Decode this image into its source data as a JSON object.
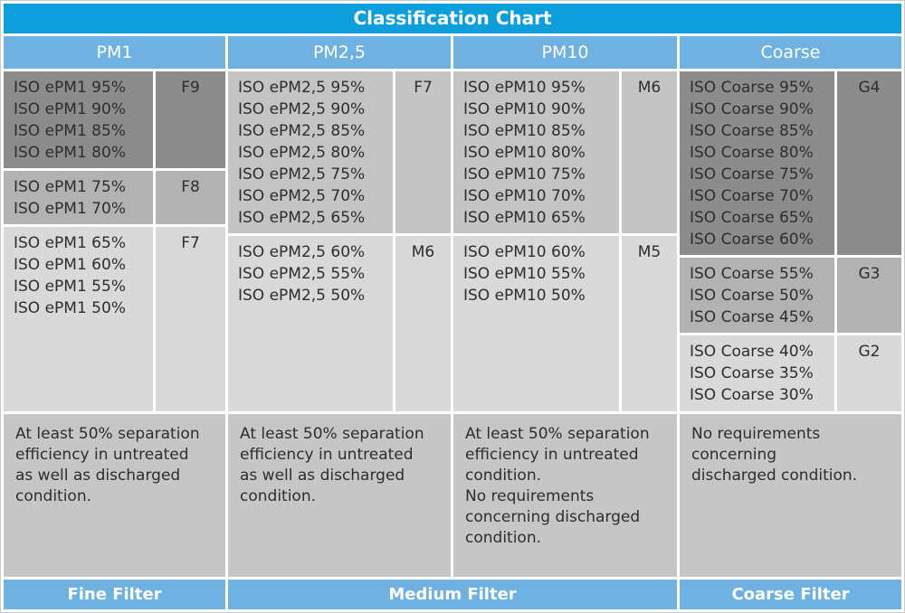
{
  "colors": {
    "title_bg": "#0c9fdb",
    "band_bg": "#6fb2e2",
    "shade_dark": "#8c8c8c",
    "shade_medium": "#b2b2b2",
    "shade_medium_light": "#c4c4c4",
    "shade_light": "#d9d9d9",
    "note_bg": "#c6c6c6",
    "text_dark": "#2d2d2d",
    "text_light": "#ffffff"
  },
  "chart_data": {
    "type": "table",
    "title": "Classification Chart",
    "columns": [
      {
        "header": "PM1",
        "groups": [
          {
            "filter_class": "F9",
            "shade": "dark",
            "items": [
              "ISO ePM1 95%",
              "ISO ePM1 90%",
              "ISO ePM1 85%",
              "ISO ePM1 80%"
            ]
          },
          {
            "filter_class": "F8",
            "shade": "medium",
            "items": [
              "ISO ePM1 75%",
              "ISO ePM1 70%"
            ]
          },
          {
            "filter_class": "F7",
            "shade": "light",
            "items": [
              "ISO ePM1 65%",
              "ISO ePM1 60%",
              "ISO ePM1 55%",
              "ISO ePM1 50%"
            ]
          }
        ],
        "note": "At least 50% separation\nefficiency in untreated\nas well as discharged\ncondition."
      },
      {
        "header": "PM2,5",
        "groups": [
          {
            "filter_class": "F7",
            "shade": "medium-light",
            "items": [
              "ISO ePM2,5 95%",
              "ISO ePM2,5 90%",
              "ISO ePM2,5 85%",
              "ISO ePM2,5 80%",
              "ISO ePM2,5 75%",
              "ISO ePM2,5 70%",
              "ISO ePM2,5 65%"
            ]
          },
          {
            "filter_class": "M6",
            "shade": "light",
            "items": [
              "ISO ePM2,5 60%",
              "ISO ePM2,5 55%",
              "ISO ePM2,5 50%"
            ]
          }
        ],
        "note": "At least 50% separation\nefficiency in untreated\nas well as discharged\ncondition."
      },
      {
        "header": "PM10",
        "groups": [
          {
            "filter_class": "M6",
            "shade": "medium-light",
            "items": [
              "ISO ePM10 95%",
              "ISO ePM10 90%",
              "ISO ePM10 85%",
              "ISO ePM10 80%",
              "ISO ePM10 75%",
              "ISO ePM10 70%",
              "ISO ePM10 65%"
            ]
          },
          {
            "filter_class": "M5",
            "shade": "light",
            "items": [
              "ISO ePM10 60%",
              "ISO ePM10 55%",
              "ISO ePM10 50%"
            ]
          }
        ],
        "note": "At least 50% separation\nefficiency in untreated\ncondition.\nNo requirements\nconcerning discharged\ncondition."
      },
      {
        "header": "Coarse",
        "groups": [
          {
            "filter_class": "G4",
            "shade": "dark",
            "items": [
              "ISO Coarse 95%",
              "ISO Coarse 90%",
              "ISO Coarse 85%",
              "ISO Coarse 80%",
              "ISO Coarse 75%",
              "ISO Coarse 70%",
              "ISO Coarse 65%",
              "ISO Coarse 60%"
            ]
          },
          {
            "filter_class": "G3",
            "shade": "medium",
            "items": [
              "ISO Coarse 55%",
              "ISO Coarse 50%",
              "ISO Coarse 45%"
            ]
          },
          {
            "filter_class": "G2",
            "shade": "light",
            "items": [
              "ISO Coarse 40%",
              "ISO Coarse 35%",
              "ISO Coarse 30%"
            ]
          }
        ],
        "note": "No requirements concerning\ndischarged condition."
      }
    ],
    "footer": [
      {
        "label": "Fine Filter",
        "span": 1
      },
      {
        "label": "Medium Filter",
        "span": 2
      },
      {
        "label": "Coarse Filter",
        "span": 1
      }
    ]
  }
}
